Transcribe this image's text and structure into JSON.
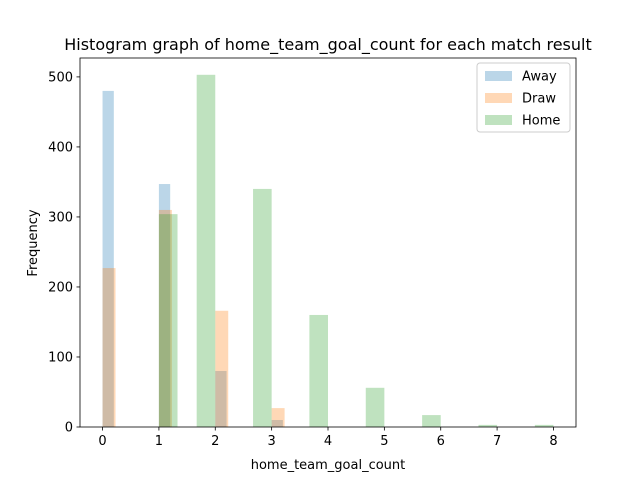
{
  "chart_data": {
    "type": "bar",
    "title": "Histogram graph of home_team_goal_count for each match result",
    "xlabel": "home_team_goal_count",
    "ylabel": "Frequency",
    "xlim": [
      -0.4,
      8.4
    ],
    "ylim": [
      0,
      527
    ],
    "xticks": [
      0,
      1,
      2,
      3,
      4,
      5,
      6,
      7,
      8
    ],
    "yticks": [
      0,
      100,
      200,
      300,
      400,
      500
    ],
    "legend_position": "top-right",
    "series": [
      {
        "name": "Away",
        "color": "#1f77b4",
        "opacity": 0.3,
        "bars": [
          {
            "x0": 0.0,
            "x1": 0.2,
            "value": 480
          },
          {
            "x0": 1.0,
            "x1": 1.2,
            "value": 347
          },
          {
            "x0": 2.0,
            "x1": 2.2,
            "value": 80
          },
          {
            "x0": 3.0,
            "x1": 3.2,
            "value": 10
          }
        ]
      },
      {
        "name": "Draw",
        "color": "#ff7f0e",
        "opacity": 0.3,
        "bars": [
          {
            "x0": 0.0,
            "x1": 0.23,
            "value": 227
          },
          {
            "x0": 1.0,
            "x1": 1.23,
            "value": 310
          },
          {
            "x0": 2.0,
            "x1": 2.23,
            "value": 166
          },
          {
            "x0": 3.0,
            "x1": 3.23,
            "value": 27
          }
        ]
      },
      {
        "name": "Home",
        "color": "#2ca02c",
        "opacity": 0.3,
        "bars": [
          {
            "x0": 1.0,
            "x1": 1.33,
            "value": 304
          },
          {
            "x0": 1.67,
            "x1": 2.0,
            "value": 503
          },
          {
            "x0": 2.67,
            "x1": 3.0,
            "value": 340
          },
          {
            "x0": 3.67,
            "x1": 4.0,
            "value": 160
          },
          {
            "x0": 4.67,
            "x1": 5.0,
            "value": 56
          },
          {
            "x0": 5.67,
            "x1": 6.0,
            "value": 17
          },
          {
            "x0": 6.67,
            "x1": 7.0,
            "value": 3
          },
          {
            "x0": 7.67,
            "x1": 8.0,
            "value": 3
          }
        ]
      }
    ]
  }
}
